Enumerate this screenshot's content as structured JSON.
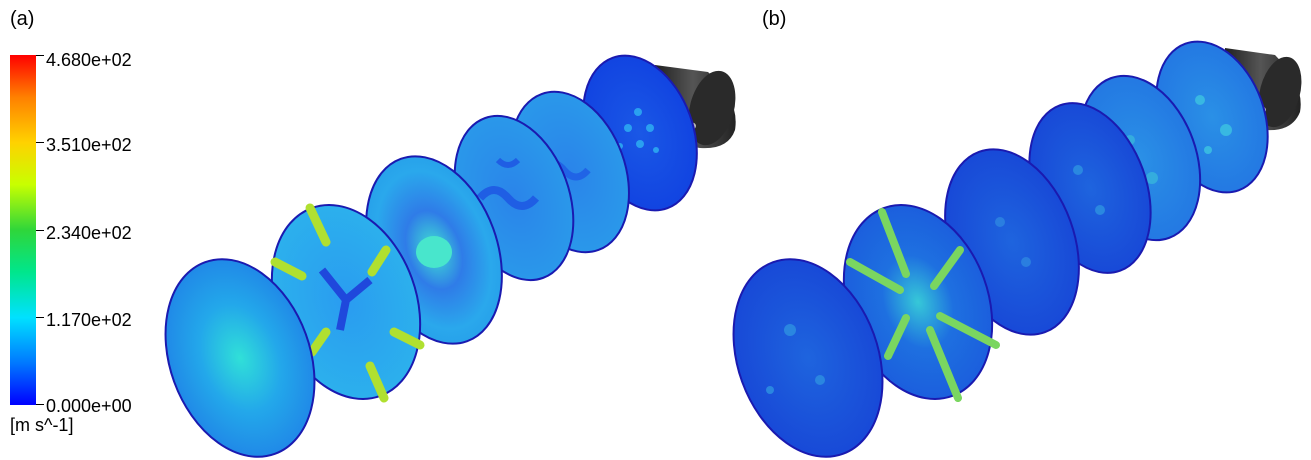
{
  "panels": {
    "a_label": "(a)",
    "b_label": "(b)"
  },
  "legend": {
    "ticks": [
      "4.680e+02",
      "3.510e+02",
      "2.340e+02",
      "1.170e+02",
      "0.000e+00"
    ],
    "unit": "[m s^-1]",
    "colors": [
      "#ff0000",
      "#ff8000",
      "#ffd200",
      "#c8ff00",
      "#2fd63a",
      "#00e68c",
      "#00e1ff",
      "#0078ff",
      "#0000ff"
    ]
  }
}
